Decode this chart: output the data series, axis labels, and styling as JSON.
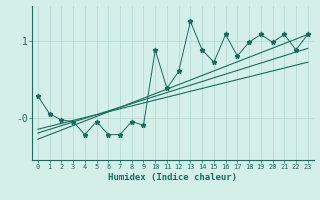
{
  "xlabel": "Humidex (Indice chaleur)",
  "bg_color": "#d4eeea",
  "plot_bg_color": "#d4eeea",
  "line_color": "#1a6b5e",
  "grid_color": "#aed8d2",
  "x_values": [
    0,
    1,
    2,
    3,
    4,
    5,
    6,
    7,
    8,
    9,
    10,
    11,
    12,
    13,
    14,
    15,
    16,
    17,
    18,
    19,
    20,
    21,
    22,
    23
  ],
  "y_data": [
    0.28,
    0.05,
    -0.03,
    -0.05,
    -0.22,
    -0.05,
    -0.22,
    -0.22,
    -0.05,
    -0.1,
    0.88,
    0.38,
    0.6,
    1.25,
    0.88,
    0.72,
    1.08,
    0.8,
    0.98,
    1.08,
    0.98,
    1.08,
    0.88,
    1.08
  ],
  "reg_lines": [
    {
      "x0": 0,
      "y0": -0.28,
      "x1": 23,
      "y1": 1.08
    },
    {
      "x0": 0,
      "y0": -0.2,
      "x1": 23,
      "y1": 0.9
    },
    {
      "x0": 0,
      "y0": -0.15,
      "x1": 23,
      "y1": 0.72
    }
  ],
  "ylim": [
    -0.55,
    1.45
  ],
  "yticks": [
    0.0,
    1.0
  ],
  "ytick_labels": [
    "-0",
    "1"
  ],
  "xlim": [
    -0.5,
    23.5
  ],
  "xticks": [
    0,
    1,
    2,
    3,
    4,
    5,
    6,
    7,
    8,
    9,
    10,
    11,
    12,
    13,
    14,
    15,
    16,
    17,
    18,
    19,
    20,
    21,
    22,
    23
  ]
}
